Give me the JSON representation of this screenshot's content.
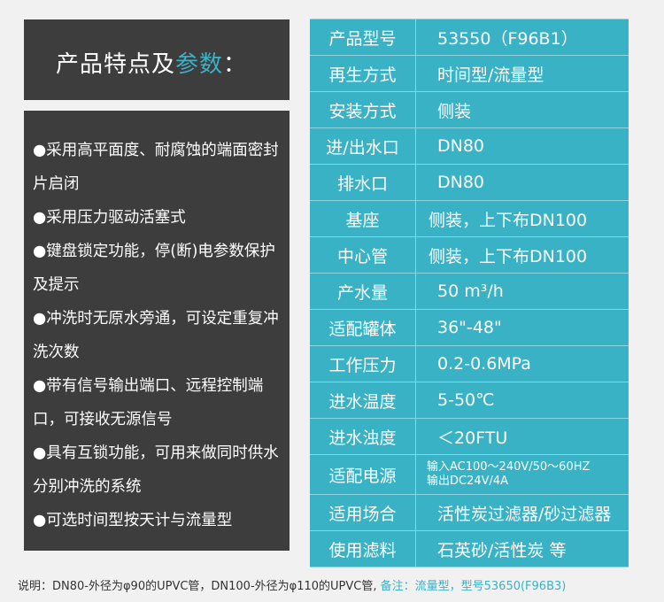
{
  "title": {
    "main": "产品特点及",
    "accent": "参数",
    "colon": "："
  },
  "features": [
    "●采用高平面度、耐腐蚀的端面密封片启闭",
    "●采用压力驱动活塞式",
    "●键盘锁定功能，停(断)电参数保护及提示",
    "●冲洗时无原水旁通，可设定重复冲洗次数",
    "●带有信号输出端口、远程控制端口，可接收无源信号",
    "●具有互锁功能，可用来做同时供水分别冲洗的系统",
    "●可选时间型按天计与流量型"
  ],
  "specs": [
    {
      "label": "产品型号",
      "value": "53550（F96B1）"
    },
    {
      "label": "再生方式",
      "value": "时间型/流量型"
    },
    {
      "label": "安装方式",
      "value": "侧装"
    },
    {
      "label": "进/出水口",
      "value": "DN80"
    },
    {
      "label": "排水口",
      "value": "DN80"
    },
    {
      "label": "基座",
      "value": "侧装，上下布DN100"
    },
    {
      "label": "中心管",
      "value": "侧装，上下布DN100"
    },
    {
      "label": "产水量",
      "value": "50 m³/h"
    },
    {
      "label": "适配罐体",
      "value": "36\"-48\""
    },
    {
      "label": "工作压力",
      "value": "0.2-0.6MPa"
    },
    {
      "label": "进水温度",
      "value": "5-50℃"
    },
    {
      "label": "进水浊度",
      "value": "＜20FTU"
    },
    {
      "label": "适配电源",
      "value": "输入AC100～240V/50～60HZ",
      "value2": "输出DC24V/4A"
    },
    {
      "label": "适用场合",
      "value": "活性炭过滤器/砂过滤器"
    },
    {
      "label": "使用滤料",
      "value": "石英砂/活性炭 等"
    }
  ],
  "note": {
    "text": "说明：DN80-外径为φ90的UPVC管，DN100-外径为φ110的UPVC管,",
    "accent": " 备注：流量型，型号53650(F96B3)"
  },
  "colors": {
    "accent": "#3ab2c5",
    "panel": "#3d3d3d",
    "background": "#f1f1f1"
  }
}
